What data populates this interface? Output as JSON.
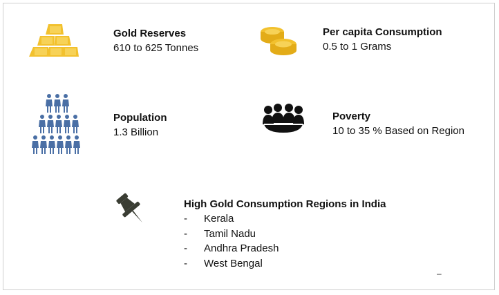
{
  "stats": {
    "gold_reserves": {
      "title": "Gold Reserves",
      "value": "610 to 625 Tonnes",
      "icon": "gold-bars-icon"
    },
    "per_capita": {
      "title": "Per capita Consumption",
      "value": "0.5 to 1 Grams",
      "icon": "gold-coins-icon"
    },
    "population": {
      "title": "Population",
      "value": "1.3 Billion",
      "icon": "people-pyramid-icon"
    },
    "poverty": {
      "title": "Poverty",
      "value": "10 to 35 % Based on Region",
      "icon": "people-group-icon"
    }
  },
  "regions": {
    "title": "High Gold Consumption Regions in India",
    "icon": "pushpin-icon",
    "bullet": "-",
    "items": [
      "Kerala",
      "Tamil Nadu",
      "Andhra Pradesh",
      "West Bengal"
    ]
  },
  "footer_mark": "–",
  "colors": {
    "gold": "#f2c12e",
    "gold_dark": "#d9a514",
    "people_blue": "#4a6fa5",
    "group_black": "#111111",
    "pin_gray": "#3a3d33"
  }
}
